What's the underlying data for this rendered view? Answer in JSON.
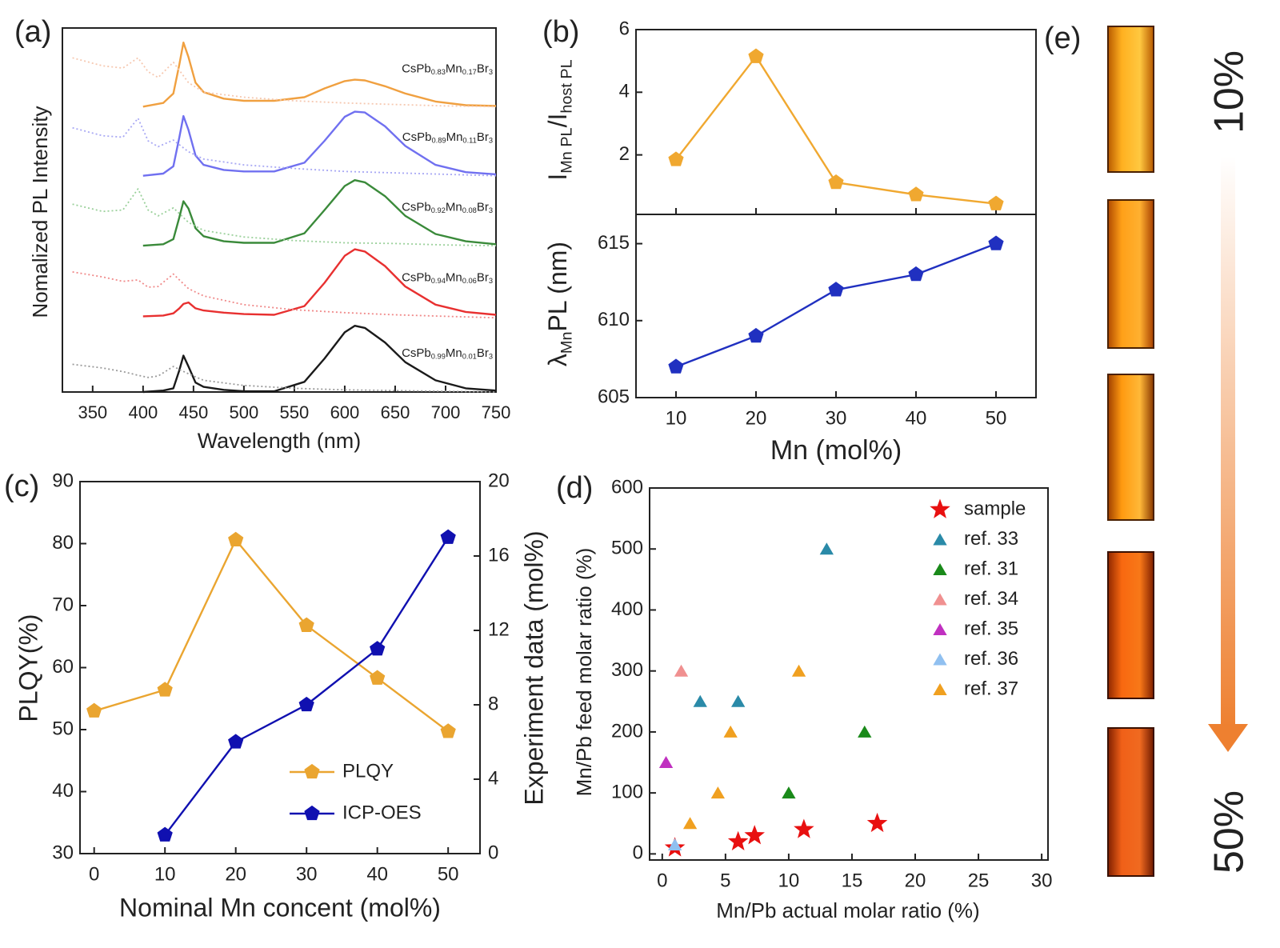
{
  "chart_data": [
    {
      "type": "line",
      "panel_label": "(a)",
      "x_label": "Wavelength (nm)",
      "y_label": "Nomalized PL Intensity",
      "xlim": [
        320,
        750
      ],
      "xticks": [
        350,
        400,
        450,
        500,
        550,
        600,
        650,
        700,
        750
      ],
      "ylim": [
        0,
        5
      ],
      "series": [
        {
          "label": [
            "CsPb",
            "0.99",
            "Mn",
            "0.01",
            "Br",
            "3"
          ],
          "color": "#1a1a1a",
          "style": "solid",
          "x": [
            400,
            420,
            430,
            436,
            440,
            445,
            452,
            460,
            480,
            500,
            530,
            560,
            580,
            600,
            610,
            620,
            640,
            660,
            690,
            720,
            750
          ],
          "values": [
            0,
            0.02,
            0.05,
            0.3,
            0.5,
            0.35,
            0.13,
            0.07,
            0.03,
            0.01,
            0.01,
            0.14,
            0.46,
            0.82,
            0.91,
            0.88,
            0.68,
            0.41,
            0.16,
            0.05,
            0.02
          ]
        },
        {
          "color": "#9a9a9a",
          "style": "dotted",
          "x": [
            330,
            360,
            380,
            395,
            405,
            415,
            430,
            445,
            460,
            500,
            550,
            600,
            650,
            700,
            750
          ],
          "values": [
            0.38,
            0.33,
            0.28,
            0.23,
            0.2,
            0.22,
            0.35,
            0.25,
            0.16,
            0.09,
            0.05,
            0.03,
            0.02,
            0.01,
            0
          ]
        },
        {
          "label": [
            "CsPb",
            "0.94",
            "Mn",
            "0.06",
            "Br",
            "3"
          ],
          "color": "#e83030",
          "style": "solid",
          "x": [
            400,
            420,
            430,
            436,
            440,
            445,
            452,
            460,
            480,
            500,
            530,
            560,
            580,
            600,
            610,
            620,
            640,
            660,
            690,
            720,
            750
          ],
          "values": [
            1.04,
            1.05,
            1.08,
            1.15,
            1.21,
            1.23,
            1.15,
            1.12,
            1.09,
            1.07,
            1.06,
            1.18,
            1.5,
            1.87,
            1.96,
            1.93,
            1.73,
            1.45,
            1.2,
            1.1,
            1.06
          ]
        },
        {
          "color": "#f08a8a",
          "style": "dotted",
          "x": [
            330,
            360,
            380,
            395,
            405,
            415,
            430,
            445,
            460,
            500,
            550,
            600,
            650,
            700,
            750
          ],
          "values": [
            1.65,
            1.58,
            1.52,
            1.54,
            1.44,
            1.45,
            1.62,
            1.42,
            1.32,
            1.2,
            1.13,
            1.09,
            1.06,
            1.04,
            1.02
          ]
        },
        {
          "label": [
            "CsPb",
            "0.92",
            "Mn",
            "0.08",
            "Br",
            "3"
          ],
          "color": "#3a8a3a",
          "style": "solid",
          "x": [
            400,
            420,
            430,
            436,
            440,
            445,
            452,
            460,
            480,
            500,
            530,
            560,
            580,
            600,
            610,
            620,
            640,
            660,
            690,
            720,
            750
          ],
          "values": [
            2.01,
            2.03,
            2.1,
            2.4,
            2.62,
            2.52,
            2.25,
            2.14,
            2.07,
            2.05,
            2.05,
            2.18,
            2.5,
            2.83,
            2.91,
            2.88,
            2.69,
            2.42,
            2.17,
            2.07,
            2.03
          ]
        },
        {
          "color": "#9ad09a",
          "style": "dotted",
          "x": [
            330,
            360,
            380,
            395,
            405,
            415,
            430,
            445,
            460,
            500,
            550,
            600,
            650,
            700,
            750
          ],
          "values": [
            2.58,
            2.48,
            2.5,
            2.79,
            2.5,
            2.42,
            2.53,
            2.33,
            2.22,
            2.13,
            2.08,
            2.05,
            2.04,
            2.02,
            2.01
          ]
        },
        {
          "label": [
            "CsPb",
            "0.89",
            "Mn",
            "0.11",
            "Br",
            "3"
          ],
          "color": "#7070f0",
          "style": "solid",
          "x": [
            400,
            420,
            430,
            436,
            440,
            445,
            452,
            460,
            480,
            500,
            530,
            560,
            580,
            600,
            610,
            620,
            640,
            660,
            690,
            720,
            750
          ],
          "values": [
            2.97,
            3.0,
            3.1,
            3.5,
            3.79,
            3.6,
            3.25,
            3.12,
            3.05,
            3.03,
            3.03,
            3.15,
            3.45,
            3.78,
            3.85,
            3.84,
            3.65,
            3.38,
            3.12,
            3.02,
            2.99
          ]
        },
        {
          "color": "#a8a8f4",
          "style": "dotted",
          "x": [
            330,
            360,
            380,
            395,
            405,
            415,
            430,
            445,
            460,
            500,
            550,
            600,
            650,
            700,
            750
          ],
          "values": [
            3.63,
            3.52,
            3.5,
            3.76,
            3.45,
            3.37,
            3.46,
            3.3,
            3.2,
            3.12,
            3.07,
            3.03,
            3.01,
            2.99,
            2.97
          ]
        },
        {
          "label": [
            "CsPb",
            "0.83",
            "Mn",
            "0.17",
            "Br",
            "3"
          ],
          "color": "#f0a040",
          "style": "solid",
          "x": [
            400,
            420,
            430,
            436,
            440,
            445,
            452,
            460,
            480,
            500,
            530,
            560,
            580,
            600,
            610,
            620,
            640,
            660,
            690,
            720,
            750
          ],
          "values": [
            3.92,
            3.97,
            4.1,
            4.5,
            4.8,
            4.6,
            4.25,
            4.12,
            4.03,
            4.0,
            4.0,
            4.05,
            4.17,
            4.27,
            4.29,
            4.28,
            4.2,
            4.1,
            3.99,
            3.94,
            3.93
          ]
        },
        {
          "color": "#f6c8b0",
          "style": "dotted",
          "x": [
            330,
            360,
            380,
            395,
            405,
            415,
            430,
            445,
            460,
            500,
            550,
            600,
            650,
            700,
            750
          ],
          "values": [
            4.59,
            4.48,
            4.45,
            4.59,
            4.4,
            4.32,
            4.53,
            4.25,
            4.12,
            4.05,
            4.0,
            3.97,
            3.95,
            3.93,
            3.92
          ]
        }
      ]
    },
    {
      "type": "line",
      "panel_label": "(b)",
      "y_label": [
        "I",
        "Mn PL",
        "/I",
        "host PL"
      ],
      "xlim": [
        5,
        55
      ],
      "ylim": [
        0.1,
        6
      ],
      "yticks": [
        2,
        4,
        6
      ],
      "series": [
        {
          "color": "#f0a830",
          "marker": "pentagon",
          "x": [
            10,
            20,
            30,
            40,
            50
          ],
          "values": [
            1.85,
            5.14,
            1.12,
            0.73,
            0.44
          ]
        }
      ]
    },
    {
      "type": "line",
      "x_label": "Mn (mol%)",
      "y_label": [
        "λ",
        "Mn",
        "PL (nm)"
      ],
      "xlim": [
        5,
        55
      ],
      "xticks": [
        10,
        20,
        30,
        40,
        50
      ],
      "ylim": [
        605,
        616.9
      ],
      "yticks": [
        605,
        610,
        615
      ],
      "series": [
        {
          "color": "#2030c0",
          "marker": "pentagon",
          "x": [
            10,
            20,
            30,
            40,
            50
          ],
          "values": [
            607,
            609,
            612,
            613,
            615
          ]
        }
      ]
    },
    {
      "type": "line",
      "panel_label": "(c)",
      "x_label": "Nominal Mn concent (mol%)",
      "y_label": "PLQY(%)",
      "y2_label": "Experiment data (mol%)",
      "xlim": [
        -2,
        54.5
      ],
      "xticks": [
        0,
        10,
        20,
        30,
        40,
        50
      ],
      "ylim": [
        30,
        90
      ],
      "yticks": [
        30,
        40,
        50,
        60,
        70,
        80,
        90
      ],
      "y2lim": [
        0,
        20
      ],
      "y2ticks": [
        0,
        4,
        8,
        12,
        16,
        20
      ],
      "series": [
        {
          "name": "PLQY",
          "color": "#eaa530",
          "marker": "pentagon",
          "x": [
            0,
            10,
            20,
            30,
            40,
            50
          ],
          "values": [
            53,
            56.4,
            80.6,
            66.8,
            58.3,
            49.7
          ]
        },
        {
          "name": "ICP-OES",
          "color": "#1010b0",
          "marker": "pentagon",
          "axis": "y2",
          "x": [
            10,
            20,
            30,
            40,
            50
          ],
          "values": [
            1,
            6,
            8,
            11,
            17
          ]
        }
      ]
    },
    {
      "type": "scatter",
      "panel_label": "(d)",
      "x_label": "Mn/Pb actual molar ratio (%)",
      "y_label": "Mn/Pb feed molar ratio (%)",
      "xlim": [
        -1,
        30.5
      ],
      "xticks": [
        0,
        5,
        10,
        15,
        20,
        25,
        30
      ],
      "ylim": [
        -10,
        600
      ],
      "yticks": [
        0,
        100,
        200,
        300,
        400,
        500,
        600
      ],
      "series": [
        {
          "name": "sample",
          "color": "#e81010",
          "marker": "star",
          "x": [
            1,
            6,
            7.3,
            11.2,
            17
          ],
          "values": [
            10,
            20,
            30,
            40,
            50
          ]
        },
        {
          "name": "ref. 33",
          "color": "#2a8aa8",
          "marker": "triangle",
          "x": [
            13,
            3,
            6
          ],
          "values": [
            500,
            250,
            250
          ]
        },
        {
          "name": "ref. 31",
          "color": "#1a8a1a",
          "marker": "triangle",
          "x": [
            16,
            10
          ],
          "values": [
            200,
            100
          ]
        },
        {
          "name": "ref. 34",
          "color": "#f09090",
          "marker": "triangle",
          "x": [
            1.5
          ],
          "values": [
            300
          ]
        },
        {
          "name": "ref. 35",
          "color": "#c030c0",
          "marker": "triangle",
          "x": [
            0.3
          ],
          "values": [
            150
          ]
        },
        {
          "name": "ref. 36",
          "color": "#90c0f0",
          "marker": "triangle",
          "x": [
            1
          ],
          "values": [
            15
          ]
        },
        {
          "name": "ref. 37",
          "color": "#f0a020",
          "marker": "triangle",
          "x": [
            10.8,
            5.4,
            4.4,
            2.2
          ],
          "values": [
            300,
            200,
            100,
            50
          ]
        }
      ]
    }
  ],
  "panel_e": {
    "panel_label": "(e)",
    "top_label": "10%",
    "bottom_label": "50%"
  }
}
